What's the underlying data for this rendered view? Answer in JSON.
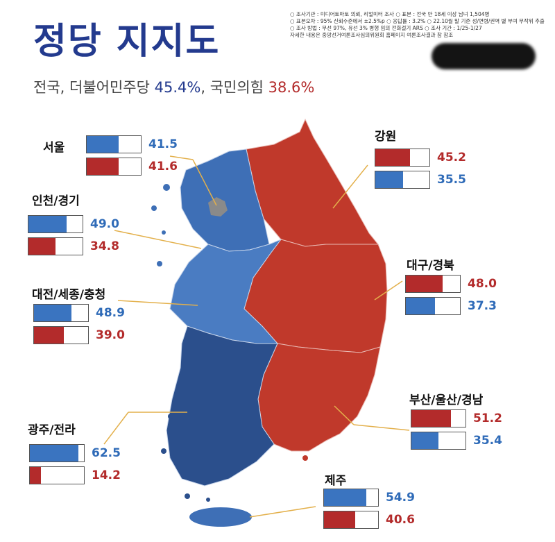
{
  "title": "정당 지지도",
  "subtitle": {
    "prefix": "전국, ",
    "party_a": "더불어민주당",
    "party_a_pct": "45.4%",
    "sep": ", ",
    "party_b": "국민의힘",
    "party_b_pct": "38.6%"
  },
  "notes": [
    "○ 조사기관 : 미디어토마토 의뢰, 리얼미터 조사 ○ 표본 : 전국 만 18세 이상 남녀 1,504명",
    "○ 표본오차 : 95% 신뢰수준에서 ±2.5%p ○ 응답률 : 3.2% ○ 22.10월 말 기준 성/연령/권역 별 부여 무작위 추출",
    "○ 조사 방법 : 무선 97%, 유선 3% 병행 임의 전화걸기 ARS ○ 조사 기간 : 1/25-1/27",
    "자세한 내용은 중앙선거여론조사심의위원회 홈페이지 여론조사결과 참 참조"
  ],
  "colors": {
    "blue": "#3a74c0",
    "red": "#b32b2b",
    "map_blue": "#3e6fb6",
    "map_dark_blue": "#2b4f8c",
    "map_red": "#c0392b",
    "seoul_gray": "#8a8a8a"
  },
  "chart_data": {
    "type": "bar",
    "title": "정당 지지도",
    "series_colors": {
      "blue": "#3a74c0",
      "red": "#b32b2b"
    },
    "regions": [
      {
        "key": "seoul",
        "name": "서울",
        "blue": 41.5,
        "red": 41.6,
        "order": [
          "blue",
          "red"
        ]
      },
      {
        "key": "incheon",
        "name": "인천/경기",
        "blue": 49.0,
        "red": 34.8,
        "order": [
          "blue",
          "red"
        ]
      },
      {
        "key": "daejeon",
        "name": "대전/세종/충청",
        "blue": 48.9,
        "red": 39.0,
        "order": [
          "blue",
          "red"
        ]
      },
      {
        "key": "gwangju",
        "name": "광주/전라",
        "blue": 62.5,
        "red": 14.2,
        "order": [
          "blue",
          "red"
        ]
      },
      {
        "key": "gangwon",
        "name": "강원",
        "blue": 35.5,
        "red": 45.2,
        "order": [
          "red",
          "blue"
        ]
      },
      {
        "key": "daegu",
        "name": "대구/경북",
        "blue": 37.3,
        "red": 48.0,
        "order": [
          "red",
          "blue"
        ]
      },
      {
        "key": "busan",
        "name": "부산/울산/경남",
        "blue": 35.4,
        "red": 51.2,
        "order": [
          "red",
          "blue"
        ]
      },
      {
        "key": "jeju",
        "name": "제주",
        "blue": 54.9,
        "red": 40.6,
        "order": [
          "blue",
          "red"
        ]
      }
    ],
    "value_format": "one-decimal",
    "axis": {
      "min": 0,
      "max": 70
    }
  }
}
